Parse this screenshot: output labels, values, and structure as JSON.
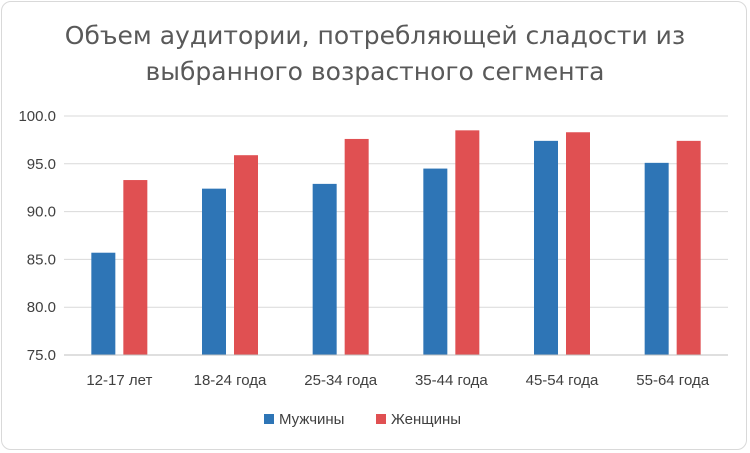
{
  "chart_data": {
    "type": "bar",
    "title_lines": [
      "Объем аудитории, потребляющей сладости из",
      "выбранного возрастного сегмента"
    ],
    "categories": [
      "12-17 лет",
      "18-24 года",
      "25-34 года",
      "35-44 года",
      "45-54 года",
      "55-64 года"
    ],
    "series": [
      {
        "name": "Мужчины",
        "color": "#2e75b6",
        "values": [
          85.7,
          92.4,
          92.9,
          94.5,
          97.4,
          95.1
        ]
      },
      {
        "name": "Женщины",
        "color": "#e05052",
        "values": [
          93.3,
          95.9,
          97.6,
          98.5,
          98.3,
          97.4
        ]
      }
    ],
    "ylim": [
      75,
      100
    ],
    "yticks": [
      "75.0",
      "80.0",
      "85.0",
      "90.0",
      "95.0",
      "100.0"
    ],
    "grid": true,
    "legend_position": "bottom-center"
  }
}
